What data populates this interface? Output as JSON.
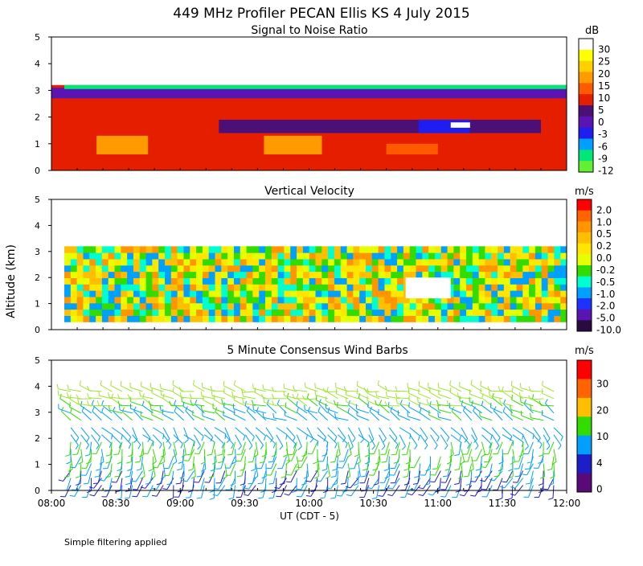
{
  "title": "449 MHz Profiler PECAN Ellis KS   4 July 2015",
  "footer": "Simple filtering applied",
  "chart_data": [
    {
      "type": "heatmap",
      "title": "Signal to Noise Ratio",
      "unit": "dB",
      "ylim": [
        0,
        5
      ],
      "yticks": [
        "0",
        "1",
        "2",
        "3",
        "4",
        "5"
      ],
      "colorbar": {
        "labels": [
          "30",
          "25",
          "20",
          "15",
          "10",
          "5",
          "0",
          "-3",
          "-6",
          "-9",
          "-12"
        ],
        "colors": [
          "#ffffff",
          "#ffff00",
          "#ffd000",
          "#ff9a00",
          "#ff5a00",
          "#e61e00",
          "#4b0f78",
          "#5a14b4",
          "#1e1ef0",
          "#00a0ff",
          "#00e678",
          "#64f032"
        ]
      },
      "regions": [
        {
          "t0": 0.0,
          "t1": 4.0,
          "h0": 0.0,
          "h1": 3.2,
          "level": "5"
        },
        {
          "t0": 0.0,
          "t1": 4.0,
          "h0": 2.7,
          "h1": 3.1,
          "level": "-3"
        },
        {
          "t0": 1.3,
          "t1": 3.8,
          "h0": 1.4,
          "h1": 1.9,
          "level": "0"
        },
        {
          "t0": 2.85,
          "t1": 3.25,
          "h0": 1.4,
          "h1": 1.9,
          "level": "-6"
        },
        {
          "t0": 3.1,
          "t1": 3.25,
          "h0": 1.6,
          "h1": 1.8,
          "level": "30"
        },
        {
          "t0": 0.35,
          "t1": 0.75,
          "h0": 0.6,
          "h1": 1.3,
          "level": "15"
        },
        {
          "t0": 1.65,
          "t1": 2.1,
          "h0": 0.6,
          "h1": 1.3,
          "level": "15"
        },
        {
          "t0": 2.6,
          "t1": 3.0,
          "h0": 0.6,
          "h1": 1.0,
          "level": "10"
        }
      ]
    },
    {
      "type": "heatmap",
      "title": "Vertical Velocity",
      "unit": "m/s",
      "ylim": [
        0,
        5
      ],
      "yticks": [
        "0",
        "1",
        "2",
        "3",
        "4",
        "5"
      ],
      "ylabel": "Altitude (km)",
      "colorbar": {
        "labels": [
          "2.0",
          "1.0",
          "0.5",
          "0.2",
          "0.0",
          "-0.2",
          "-0.5",
          "-1.0",
          "-2.0",
          "-5.0",
          "-10.0"
        ],
        "colors": [
          "#ff0000",
          "#ff6400",
          "#ff9600",
          "#ffbe00",
          "#ffe600",
          "#e6ff00",
          "#32dc00",
          "#00ffd0",
          "#00a0ff",
          "#1e32ff",
          "#5a14b4",
          "#2a0a40"
        ]
      },
      "regions": [
        {
          "t0": 0.1,
          "t1": 4.0,
          "h0": 0.3,
          "h1": 3.2,
          "level": "-0.2"
        },
        {
          "t0": 2.75,
          "t1": 3.1,
          "h0": 1.2,
          "h1": 2.0,
          "level": "no-data"
        }
      ]
    },
    {
      "type": "barbs",
      "title": "5 Minute Consensus Wind Barbs",
      "unit": "m/s",
      "ylim": [
        0,
        5
      ],
      "yticks": [
        "0",
        "1",
        "2",
        "3",
        "4",
        "5"
      ],
      "xlabel": "UT  (CDT - 5)",
      "xticks": [
        "08:00",
        "08:30",
        "09:00",
        "09:30",
        "10:00",
        "10:30",
        "11:00",
        "11:30",
        "12:00"
      ],
      "colorbar": {
        "labels": [
          "30",
          "20",
          "10",
          "4",
          "0"
        ],
        "colors": [
          "#ff0000",
          "#ff6400",
          "#ffbe00",
          "#32dc00",
          "#00a0ff",
          "#1e1ec8",
          "#5a0a78"
        ]
      },
      "speed_profile": [
        {
          "altitude_km": 0.5,
          "speed_ms": 4,
          "direction_deg": 200
        },
        {
          "altitude_km": 1.0,
          "speed_ms": 8,
          "direction_deg": 190
        },
        {
          "altitude_km": 1.5,
          "speed_ms": 9,
          "direction_deg": 185
        },
        {
          "altitude_km": 2.0,
          "speed_ms": 6,
          "direction_deg": 140
        },
        {
          "altitude_km": 2.5,
          "speed_ms": 7,
          "direction_deg": 300
        },
        {
          "altitude_km": 3.0,
          "speed_ms": 12,
          "direction_deg": 290
        },
        {
          "altitude_km": 3.5,
          "speed_ms": 14,
          "direction_deg": 285
        }
      ]
    }
  ]
}
